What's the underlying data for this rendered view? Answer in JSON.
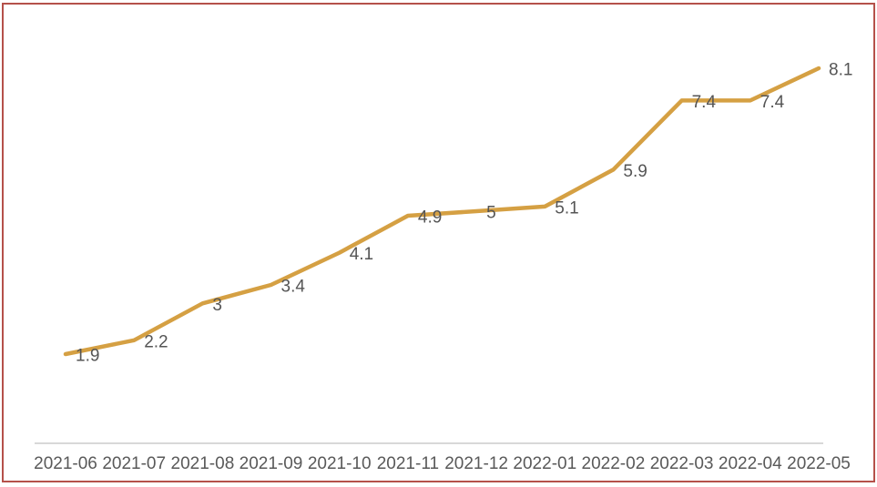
{
  "frame": {
    "border_color": "#b5514a"
  },
  "chart_data": {
    "type": "line",
    "title": "",
    "xlabel": "",
    "ylabel": "",
    "categories": [
      "2021-06",
      "2021-07",
      "2021-08",
      "2021-09",
      "2021-10",
      "2021-11",
      "2021-12",
      "2022-01",
      "2022-02",
      "2022-03",
      "2022-04",
      "2022-05"
    ],
    "series": [
      {
        "name": "value",
        "values": [
          1.9,
          2.2,
          3,
          3.4,
          4.1,
          4.9,
          5,
          5.1,
          5.9,
          7.4,
          7.4,
          8.1
        ]
      }
    ],
    "data_labels": [
      "1.9",
      "2.2",
      "3",
      "3.4",
      "4.1",
      "4.9",
      "5",
      "5.1",
      "5.9",
      "7.4",
      "7.4",
      "8.1"
    ],
    "grid": false,
    "legend_position": "none",
    "y_axis_visible": false,
    "x_axis_line_visible": true,
    "markers": false,
    "colors": {
      "line": "#d5a043",
      "data_label": "#555555",
      "axis_label": "#595959",
      "axis_line": "#cccccc",
      "background": "#ffffff"
    }
  }
}
